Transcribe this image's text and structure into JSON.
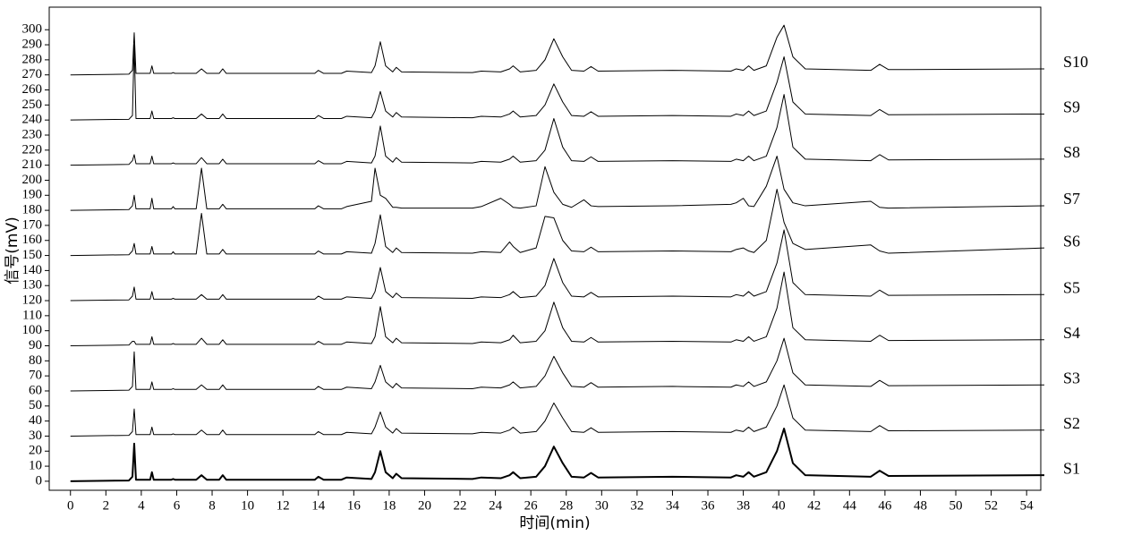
{
  "chart_data": {
    "type": "line",
    "x_label": "时间(min)",
    "y_label": "信号(mV)",
    "xlim": [
      -1.2,
      54.8
    ],
    "ylim": [
      -6,
      315
    ],
    "xticks": [
      0,
      2,
      4,
      6,
      8,
      10,
      12,
      14,
      16,
      18,
      20,
      22,
      24,
      26,
      28,
      30,
      32,
      34,
      36,
      38,
      40,
      42,
      44,
      46,
      48,
      50,
      52,
      54
    ],
    "yticks": [
      0,
      10,
      20,
      30,
      40,
      50,
      60,
      70,
      80,
      90,
      100,
      110,
      120,
      130,
      140,
      150,
      160,
      170,
      180,
      190,
      200,
      210,
      220,
      230,
      240,
      250,
      260,
      270,
      280,
      290,
      300
    ],
    "x": [
      0,
      3.3,
      3.5,
      3.6,
      3.7,
      4.5,
      4.6,
      4.7,
      5.7,
      5.8,
      5.9,
      7.1,
      7.4,
      7.7,
      8.4,
      8.6,
      8.8,
      13.8,
      14.0,
      14.3,
      15.3,
      15.6,
      17.0,
      17.2,
      17.5,
      17.8,
      18.2,
      18.4,
      18.7,
      22.7,
      23.2,
      24.3,
      24.8,
      25.0,
      25.4,
      26.3,
      26.8,
      27.3,
      27.8,
      28.3,
      29.0,
      29.4,
      29.8,
      34.0,
      37.3,
      37.6,
      38.0,
      38.3,
      38.6,
      39.3,
      39.9,
      40.3,
      40.8,
      41.5,
      45.2,
      45.7,
      46.2,
      55
    ],
    "series": [
      {
        "name": "S1",
        "color": "#000000",
        "stroke_width": 2,
        "values": [
          0,
          0.5,
          3,
          25,
          1,
          1,
          6,
          1,
          1,
          1.5,
          1,
          1,
          4,
          1,
          1,
          4,
          1,
          1,
          3,
          1,
          1,
          2.5,
          1.5,
          6,
          20,
          6,
          2,
          5,
          2,
          1.5,
          2.5,
          2,
          4,
          6,
          2,
          3,
          10,
          23,
          12,
          3,
          2.5,
          5.5,
          2.5,
          3,
          2.5,
          4,
          3,
          6,
          3,
          6,
          20,
          35,
          12,
          4,
          3,
          7,
          3.5,
          4
        ]
      },
      {
        "name": "S2",
        "color": "#000000",
        "stroke_width": 1,
        "values": [
          30,
          30.5,
          33,
          48,
          31,
          31,
          36,
          31,
          31,
          31.5,
          31,
          31,
          34,
          31,
          31,
          34,
          31,
          31,
          33,
          31,
          31,
          32.5,
          31.5,
          36,
          46,
          36,
          32,
          35,
          32,
          31.5,
          32.5,
          32,
          34,
          36,
          32,
          33,
          40,
          52,
          42,
          33,
          32.5,
          35.5,
          32.5,
          33,
          32.5,
          34,
          33,
          36,
          33,
          36,
          50,
          64,
          42,
          34,
          33,
          37,
          33.5,
          34
        ]
      },
      {
        "name": "S3",
        "color": "#000000",
        "stroke_width": 1,
        "values": [
          60,
          60.5,
          63,
          86,
          61,
          61,
          66,
          61,
          61,
          61.5,
          61,
          61,
          64,
          61,
          61,
          64,
          61,
          61,
          63,
          61,
          61,
          62.5,
          61.5,
          66,
          77,
          66,
          62,
          65,
          62,
          61.5,
          62.5,
          62,
          64,
          66,
          62,
          63,
          70,
          83,
          72,
          63,
          62.5,
          65.5,
          62.5,
          63,
          62.5,
          64,
          63,
          66,
          63,
          66,
          80,
          95,
          72,
          64,
          63,
          67,
          63.5,
          64
        ]
      },
      {
        "name": "S4",
        "color": "#000000",
        "stroke_width": 1,
        "values": [
          90,
          90.5,
          93,
          93,
          91,
          91,
          96,
          91,
          91,
          91.5,
          91,
          91,
          95,
          91,
          91,
          94,
          91,
          91,
          93,
          91,
          91,
          92.5,
          91.5,
          96,
          116,
          96,
          92,
          95,
          92,
          91.5,
          92.5,
          92,
          94,
          97,
          92,
          93,
          100,
          119,
          102,
          93,
          92.5,
          95.5,
          92.5,
          93,
          92.5,
          94,
          93,
          96,
          93,
          96,
          115,
          139,
          102,
          94,
          93,
          97,
          93.5,
          94
        ]
      },
      {
        "name": "S5",
        "color": "#000000",
        "stroke_width": 1,
        "values": [
          120,
          120.5,
          123,
          129,
          121,
          121,
          126,
          121,
          121,
          121.5,
          121,
          121,
          124,
          121,
          121,
          124,
          121,
          121,
          123,
          121,
          121,
          122.5,
          121.5,
          126,
          142,
          126,
          122,
          125,
          122,
          121.5,
          122.5,
          122,
          124,
          126,
          122,
          123,
          130,
          148,
          132,
          123,
          122.5,
          125.5,
          122.5,
          123,
          122.5,
          124,
          123,
          126,
          123,
          126,
          145,
          167,
          132,
          124,
          123,
          127,
          123.5,
          124
        ]
      },
      {
        "name": "S6",
        "color": "#000000",
        "stroke_width": 1,
        "values": [
          150,
          150.5,
          153,
          158,
          151,
          151,
          156,
          151,
          151,
          152.5,
          151,
          151,
          178,
          151,
          151,
          154,
          151,
          151,
          153,
          151,
          151,
          152.5,
          151.5,
          158,
          177,
          156,
          152,
          155,
          152,
          151.5,
          152.5,
          152,
          159,
          156,
          152,
          155,
          176,
          175,
          160,
          153,
          152.5,
          155.5,
          152.5,
          153,
          152.5,
          154,
          155,
          153,
          152,
          160,
          194,
          172,
          158,
          154,
          157,
          153,
          151.5,
          155
        ]
      },
      {
        "name": "S7",
        "color": "#000000",
        "stroke_width": 1,
        "values": [
          180,
          180.5,
          183,
          190,
          181,
          181,
          188,
          181,
          181,
          182.5,
          181,
          181,
          208,
          181,
          181,
          184,
          181,
          181,
          183,
          181,
          181,
          182.5,
          186,
          208,
          190,
          188,
          182,
          182,
          181.5,
          181.5,
          182.5,
          188,
          184,
          182,
          181.5,
          183,
          209,
          192,
          184,
          182,
          187,
          183,
          182.5,
          183,
          184,
          185,
          188,
          183,
          182.5,
          196,
          216,
          194,
          185,
          183,
          186,
          182,
          181.5,
          183
        ]
      },
      {
        "name": "S8",
        "color": "#000000",
        "stroke_width": 1,
        "values": [
          210,
          210.5,
          213,
          217,
          211,
          211,
          216,
          211,
          211,
          211.5,
          211,
          211,
          215,
          211,
          211,
          214,
          211,
          211,
          213,
          211,
          211,
          212.5,
          211.5,
          216,
          236,
          216,
          212,
          215,
          212,
          211.5,
          212.5,
          212,
          214,
          216,
          212,
          213,
          220,
          241,
          222,
          213,
          212.5,
          215.5,
          212.5,
          213,
          212.5,
          214,
          213,
          216,
          213,
          216,
          235,
          257,
          222,
          214,
          213,
          217,
          213.5,
          214
        ]
      },
      {
        "name": "S9",
        "color": "#000000",
        "stroke_width": 1,
        "values": [
          240,
          240.5,
          243,
          290,
          241,
          241,
          246,
          241,
          241,
          241.5,
          241,
          241,
          244,
          241,
          241,
          244,
          241,
          241,
          243,
          241,
          241,
          242.5,
          241.5,
          246,
          259,
          246,
          242,
          245,
          242,
          241.5,
          242.5,
          242,
          244,
          246,
          242,
          243,
          250,
          264,
          252,
          243,
          242.5,
          245.5,
          242.5,
          243,
          242.5,
          244,
          243,
          246,
          243,
          246,
          265,
          282,
          252,
          244,
          243,
          247,
          243.5,
          244
        ]
      },
      {
        "name": "S10",
        "color": "#000000",
        "stroke_width": 1,
        "values": [
          270,
          270.5,
          273,
          298,
          271,
          271,
          276,
          271,
          271,
          271.5,
          271,
          271,
          274,
          271,
          271,
          274,
          271,
          271,
          273,
          271,
          271,
          272.5,
          271.5,
          276,
          292,
          276,
          272,
          275,
          272,
          271.5,
          272.5,
          272,
          274,
          276,
          272,
          273,
          280,
          294,
          282,
          273,
          272.5,
          275.5,
          272.5,
          273,
          272.5,
          274,
          273,
          276,
          273,
          276,
          295,
          303,
          282,
          274,
          273,
          277,
          273.5,
          274
        ]
      }
    ]
  }
}
